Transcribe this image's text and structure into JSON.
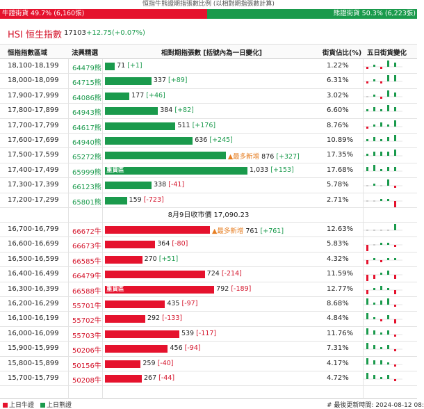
{
  "header": {
    "title": "恒指牛熊證期指張數比例 (以相對期指張數計算)"
  },
  "ratio": {
    "bull_label": "牛證街貨 49.7% (6,160張)",
    "bull_pct": 49.7,
    "bear_label": "熊證街貨 50.3% (6,223張)"
  },
  "hsi": {
    "name": "HSI 恒生指數",
    "price": "17103",
    "change": "+12.75(+0.07%)"
  },
  "columns": [
    "恒指指數區域",
    "法興精選",
    "相對期指張數 [括號內為一日變化]",
    "街貨佔比(%)",
    "五日街貨變化"
  ],
  "bear_rows": [
    {
      "range": "18,100-18,199",
      "code": "64479熊",
      "count": "71",
      "chg": "[+1]",
      "pct": "1.22%",
      "v": 71,
      "tag": "",
      "star": "",
      "spark": [
        -1,
        1,
        -1,
        3,
        2
      ]
    },
    {
      "range": "18,000-18,099",
      "code": "64715熊",
      "count": "337",
      "chg": "[+89]",
      "pct": "6.31%",
      "v": 337,
      "tag": "",
      "star": "",
      "spark": [
        -1,
        1,
        -1,
        3,
        3
      ]
    },
    {
      "range": "17,900-17,999",
      "code": "64086熊",
      "count": "177",
      "chg": "[+46]",
      "pct": "3.02%",
      "v": 177,
      "tag": "",
      "star": "",
      "spark": [
        0,
        1,
        -1,
        3,
        2
      ]
    },
    {
      "range": "17,800-17,899",
      "code": "64943熊",
      "count": "384",
      "chg": "[+82]",
      "pct": "6.60%",
      "v": 384,
      "tag": "",
      "star": "",
      "spark": [
        1,
        2,
        1,
        3,
        2
      ]
    },
    {
      "range": "17,700-17,799",
      "code": "64617熊",
      "count": "511",
      "chg": "[+176]",
      "pct": "8.76%",
      "v": 511,
      "tag": "",
      "star": "",
      "spark": [
        -1,
        1,
        2,
        1,
        3
      ]
    },
    {
      "range": "17,600-17,699",
      "code": "64940熊",
      "count": "636",
      "chg": "[+245]",
      "pct": "10.89%",
      "v": 636,
      "tag": "",
      "star": "",
      "spark": [
        1,
        2,
        1,
        2,
        3
      ]
    },
    {
      "range": "17,500-17,599",
      "code": "65272熊",
      "count": "876",
      "chg": "[+327]",
      "pct": "17.35%",
      "v": 876,
      "tag": "",
      "star": "▲最多新增",
      "spark": [
        1,
        2,
        2,
        2,
        3
      ]
    },
    {
      "range": "17,400-17,499",
      "code": "65999熊",
      "count": "1,033",
      "chg": "[+153]",
      "pct": "17.68%",
      "v": 1033,
      "tag": "重貨區",
      "star": "",
      "spark": [
        2,
        3,
        1,
        2,
        2
      ]
    },
    {
      "range": "17,300-17,399",
      "code": "66123熊",
      "count": "338",
      "chg": "[-41]",
      "pct": "5.78%",
      "v": 338,
      "tag": "",
      "star": "",
      "spark": [
        0,
        1,
        0,
        3,
        -1
      ]
    },
    {
      "range": "17,200-17,299",
      "code": "65801熊",
      "count": "159",
      "chg": "[-723]",
      "pct": "2.71%",
      "v": 159,
      "tag": "",
      "star": "",
      "spark": [
        0,
        0,
        1,
        1,
        -3
      ]
    }
  ],
  "close_label": "8月9日收市價 17,090.23",
  "bull_rows": [
    {
      "range": "16,700-16,799",
      "code": "66672牛",
      "count": "761",
      "chg": "[+761]",
      "pct": "12.63%",
      "v": 761,
      "tag": "",
      "star": "▲最多新增",
      "spark": [
        0,
        0,
        0,
        0,
        3
      ]
    },
    {
      "range": "16,600-16,699",
      "code": "66673牛",
      "count": "364",
      "chg": "[-80]",
      "pct": "5.83%",
      "v": 364,
      "tag": "",
      "star": "",
      "spark": [
        -3,
        0,
        1,
        1,
        -1
      ]
    },
    {
      "range": "16,500-16,599",
      "code": "66585牛",
      "count": "270",
      "chg": "[+51]",
      "pct": "4.32%",
      "v": 270,
      "tag": "",
      "star": "",
      "spark": [
        -2,
        1,
        -1,
        1,
        1
      ]
    },
    {
      "range": "16,400-16,499",
      "code": "66479牛",
      "count": "724",
      "chg": "[-214]",
      "pct": "11.59%",
      "v": 724,
      "tag": "",
      "star": "",
      "spark": [
        -3,
        -2,
        1,
        2,
        -2
      ]
    },
    {
      "range": "16,300-16,399",
      "code": "66588牛",
      "count": "792",
      "chg": "[-189]",
      "pct": "12.77%",
      "v": 792,
      "tag": "重貨區",
      "star": "",
      "spark": [
        -2,
        1,
        2,
        1,
        -2
      ]
    },
    {
      "range": "16,200-16,299",
      "code": "55701牛",
      "count": "435",
      "chg": "[-97]",
      "pct": "8.68%",
      "v": 435,
      "tag": "",
      "star": "",
      "spark": [
        3,
        1,
        2,
        3,
        -1
      ]
    },
    {
      "range": "16,100-16,199",
      "code": "55702牛",
      "count": "292",
      "chg": "[-133]",
      "pct": "4.84%",
      "v": 292,
      "tag": "",
      "star": "",
      "spark": [
        3,
        1,
        -1,
        2,
        -2
      ]
    },
    {
      "range": "16,000-16,099",
      "code": "55703牛",
      "count": "539",
      "chg": "[-117]",
      "pct": "11.76%",
      "v": 539,
      "tag": "",
      "star": "",
      "spark": [
        3,
        2,
        1,
        2,
        -1
      ]
    },
    {
      "range": "15,900-15,999",
      "code": "50206牛",
      "count": "456",
      "chg": "[-94]",
      "pct": "7.31%",
      "v": 456,
      "tag": "",
      "star": "",
      "spark": [
        3,
        2,
        1,
        2,
        -1
      ]
    },
    {
      "range": "15,800-15,899",
      "code": "50156牛",
      "count": "259",
      "chg": "[-40]",
      "pct": "4.17%",
      "v": 259,
      "tag": "",
      "star": "",
      "spark": [
        3,
        2,
        2,
        1,
        -1
      ]
    },
    {
      "range": "15,700-15,799",
      "code": "50208牛",
      "count": "267",
      "chg": "[-44]",
      "pct": "4.72%",
      "v": 267,
      "tag": "",
      "star": "",
      "spark": [
        3,
        2,
        1,
        2,
        -1
      ]
    }
  ],
  "legend": {
    "bull": "上日牛證",
    "bear": "上日熊證",
    "updated": "# 最後更新時間: 2024-08-12 08:"
  },
  "colors": {
    "bull": "#e5122d",
    "bear": "#1a9a4c"
  }
}
